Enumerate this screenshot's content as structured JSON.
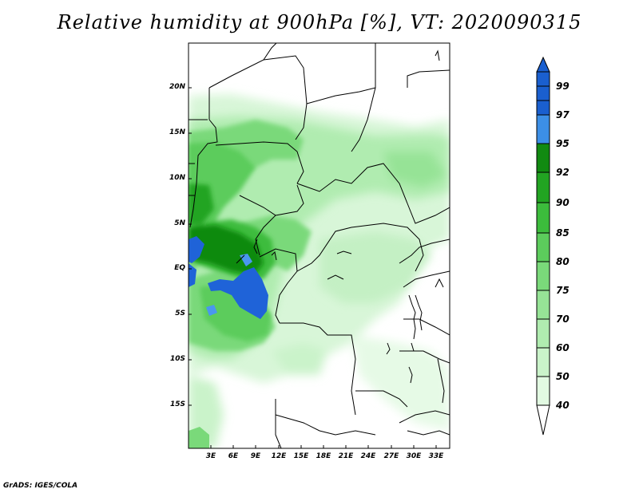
{
  "title": "Relative humidity at 900hPa [%], VT: 2020090315",
  "credit": "GrADS: IGES/COLA",
  "latitude_labels": [
    "20N",
    "15N",
    "10N",
    "5N",
    "EQ",
    "5S",
    "10S",
    "15S"
  ],
  "longitude_labels": [
    "3E",
    "6E",
    "9E",
    "12E",
    "15E",
    "18E",
    "21E",
    "24E",
    "27E",
    "30E",
    "33E"
  ],
  "colorbar": {
    "labels": [
      "99",
      "97",
      "95",
      "92",
      "90",
      "85",
      "80",
      "75",
      "70",
      "60",
      "50",
      "40"
    ],
    "colors": [
      "#1a5fcf",
      "#3c8fe6",
      "#118a11",
      "#22a422",
      "#3cbc3c",
      "#5ccc5c",
      "#7ad97a",
      "#96e396",
      "#b0ecb0",
      "#caf3ca",
      "#e2fae2",
      "#ffffff"
    ]
  },
  "colors": {
    "water_dark": "#1f63d8",
    "water_light": "#4a97ee",
    "green_dark": "#118a11",
    "green_mid": "#3cbc3c",
    "green_light": "#96e396",
    "green_pale": "#d8f6d8"
  }
}
